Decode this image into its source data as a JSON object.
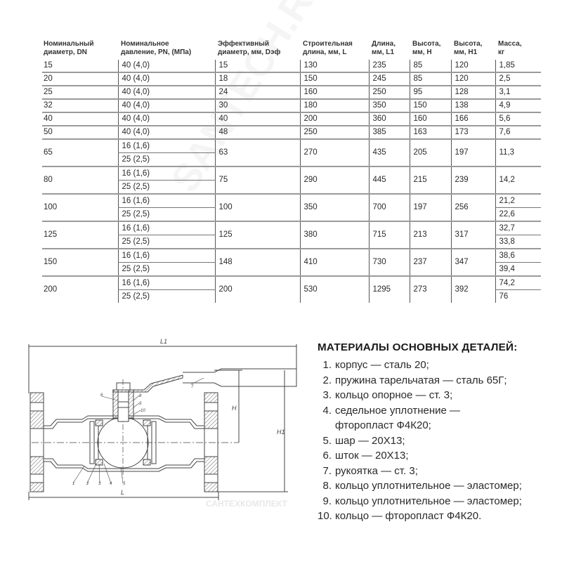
{
  "table": {
    "headers": [
      [
        "Номинальный",
        "диаметр, DN"
      ],
      [
        "Номинальное",
        "давление, PN, (МПа)"
      ],
      [
        "Эффективный",
        "диаметр, мм, Dэф"
      ],
      [
        "Строительная",
        "длина, мм, L"
      ],
      [
        "Длина,",
        "мм, L1"
      ],
      [
        "Высота,",
        "мм, H"
      ],
      [
        "Высота,",
        "мм, H1"
      ],
      [
        "Масса,",
        "кг"
      ]
    ],
    "rows": [
      {
        "dn": "15",
        "pn": [
          "40 (4,0)"
        ],
        "deff": "15",
        "l": "130",
        "l1": "235",
        "h": "85",
        "h1": "120",
        "mass": [
          "1,85"
        ]
      },
      {
        "dn": "20",
        "pn": [
          "40 (4,0)"
        ],
        "deff": "18",
        "l": "150",
        "l1": "245",
        "h": "85",
        "h1": "120",
        "mass": [
          "2,5"
        ]
      },
      {
        "dn": "25",
        "pn": [
          "40 (4,0)"
        ],
        "deff": "24",
        "l": "160",
        "l1": "250",
        "h": "95",
        "h1": "128",
        "mass": [
          "3,1"
        ]
      },
      {
        "dn": "32",
        "pn": [
          "40 (4,0)"
        ],
        "deff": "30",
        "l": "180",
        "l1": "350",
        "h": "150",
        "h1": "138",
        "mass": [
          "4,9"
        ]
      },
      {
        "dn": "40",
        "pn": [
          "40 (4,0)"
        ],
        "deff": "40",
        "l": "200",
        "l1": "360",
        "h": "160",
        "h1": "166",
        "mass": [
          "5,6"
        ]
      },
      {
        "dn": "50",
        "pn": [
          "40 (4,0)"
        ],
        "deff": "48",
        "l": "250",
        "l1": "385",
        "h": "163",
        "h1": "173",
        "mass": [
          "7,6"
        ]
      },
      {
        "dn": "65",
        "pn": [
          "16 (1,6)",
          "25 (2,5)"
        ],
        "deff": "63",
        "l": "270",
        "l1": "435",
        "h": "205",
        "h1": "197",
        "mass": [
          "11,3"
        ]
      },
      {
        "dn": "80",
        "pn": [
          "16 (1,6)",
          "25 (2,5)"
        ],
        "deff": "75",
        "l": "290",
        "l1": "445",
        "h": "215",
        "h1": "239",
        "mass": [
          "14,2"
        ]
      },
      {
        "dn": "100",
        "pn": [
          "16 (1,6)",
          "25 (2,5)"
        ],
        "deff": "100",
        "l": "350",
        "l1": "700",
        "h": "197",
        "h1": "256",
        "mass": [
          "21,2",
          "22,6"
        ]
      },
      {
        "dn": "125",
        "pn": [
          "16 (1,6)",
          "25 (2,5)"
        ],
        "deff": "125",
        "l": "380",
        "l1": "715",
        "h": "213",
        "h1": "317",
        "mass": [
          "32,7",
          "33,8"
        ]
      },
      {
        "dn": "150",
        "pn": [
          "16 (1,6)",
          "25 (2,5)"
        ],
        "deff": "148",
        "l": "410",
        "l1": "730",
        "h": "237",
        "h1": "347",
        "mass": [
          "38,6",
          "39,4"
        ]
      },
      {
        "dn": "200",
        "pn": [
          "16 (1,6)",
          "25 (2,5)"
        ],
        "deff": "200",
        "l": "530",
        "l1": "1295",
        "h": "273",
        "h1": "392",
        "mass": [
          "74,2",
          "76"
        ]
      }
    ]
  },
  "drawing": {
    "dimensions": {
      "l1": "L1",
      "h": "H",
      "h1": "H1",
      "l": "L"
    },
    "callouts": [
      "1",
      "2",
      "3",
      "4",
      "5",
      "6",
      "7",
      "8",
      "9",
      "10"
    ]
  },
  "materials": {
    "title": "МАТЕРИАЛЫ ОСНОВНЫХ ДЕТАЛЕЙ:",
    "items": [
      {
        "n": "1.",
        "text": "корпус — сталь 20;"
      },
      {
        "n": "2.",
        "text": "пружина тарельчатая — сталь 65Г;"
      },
      {
        "n": "3.",
        "text": "кольцо опорное — ст. 3;"
      },
      {
        "n": "4.",
        "text": "седельное уплотнение —",
        "cont": "фторопласт Ф4К20;"
      },
      {
        "n": "5.",
        "text": "шар — 20Х13;"
      },
      {
        "n": "6.",
        "text": "шток — 20Х13;"
      },
      {
        "n": "7.",
        "text": "рукоятка — ст. 3;"
      },
      {
        "n": "8.",
        "text": "кольцо уплотнительное — эластомер;"
      },
      {
        "n": "9.",
        "text": "кольцо уплотнительное — эластомер;"
      },
      {
        "n": "10.",
        "text": "кольцо  — фторопласт Ф4К20."
      }
    ]
  },
  "watermark": {
    "main": "SANTECH.RU",
    "bottom": "САНТЕХКОМПЛЕКТ"
  }
}
